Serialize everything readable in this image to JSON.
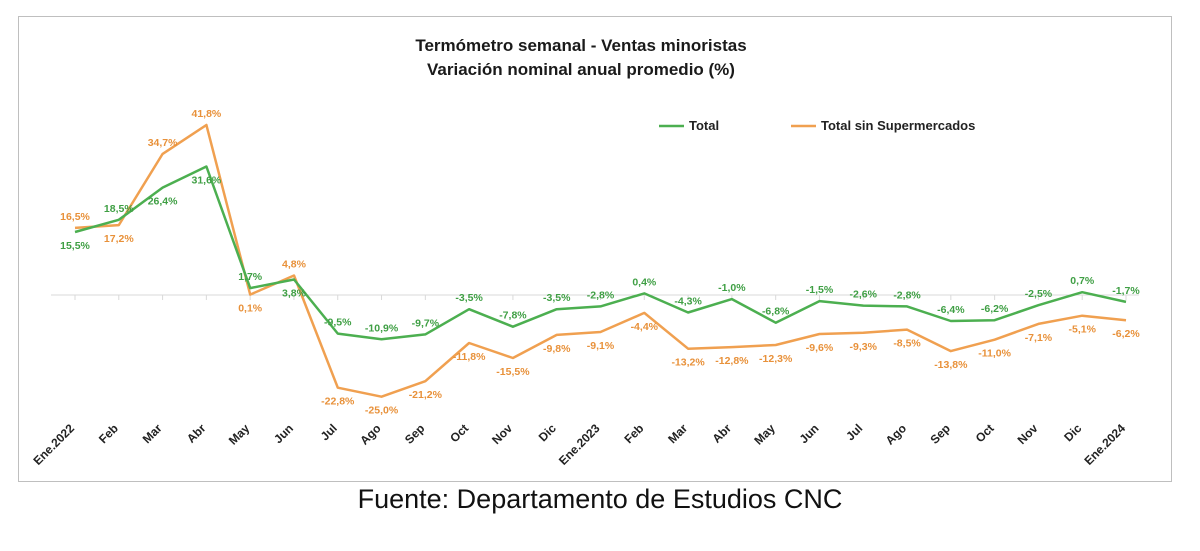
{
  "chart_data": {
    "type": "line",
    "title": "Termómetro semanal - Ventas minoristas",
    "subtitle": "Variación nominal anual promedio (%)",
    "categories": [
      "Ene.2022",
      "Feb",
      "Mar",
      "Abr",
      "May",
      "Jun",
      "Jul",
      "Ago",
      "Sep",
      "Oct",
      "Nov",
      "Dic",
      "Ene.2023",
      "Feb",
      "Mar",
      "Abr",
      "May",
      "Jun",
      "Jul",
      "Ago",
      "Sep",
      "Oct",
      "Nov",
      "Dic",
      "Ene.2024"
    ],
    "series": [
      {
        "name": "Total",
        "color": "#4caf50",
        "values": [
          15.5,
          18.5,
          26.4,
          31.6,
          1.7,
          3.8,
          -9.5,
          -10.9,
          -9.7,
          -3.5,
          -7.8,
          -3.5,
          -2.8,
          0.4,
          -4.3,
          -1.0,
          -6.8,
          -1.5,
          -2.6,
          -2.8,
          -6.4,
          -6.2,
          -2.5,
          0.7,
          -1.7
        ],
        "labels": [
          "15,5%",
          "18,5%",
          "26,4%",
          "31,6%",
          "1,7%",
          "3,8%",
          "-9,5%",
          "-10,9%",
          "-9,7%",
          "-3,5%",
          "-7,8%",
          "-3,5%",
          "-2,8%",
          "0,4%",
          "-4,3%",
          "-1,0%",
          "-6,8%",
          "-1,5%",
          "-2,6%",
          "-2,8%",
          "-6,4%",
          "-6,2%",
          "-2,5%",
          "0,7%",
          "-1,7%"
        ]
      },
      {
        "name": "Total sin Supermercados",
        "color": "#f0a050",
        "values": [
          16.5,
          17.2,
          34.7,
          41.8,
          0.1,
          4.8,
          -22.8,
          -25.0,
          -21.2,
          -11.8,
          -15.5,
          -9.8,
          -9.1,
          -4.4,
          -13.2,
          -12.8,
          -12.3,
          -9.6,
          -9.3,
          -8.5,
          -13.8,
          -11.0,
          -7.1,
          -5.1,
          -6.2
        ],
        "labels": [
          "16,5%",
          "17,2%",
          "34,7%",
          "41,8%",
          "0,1%",
          "4,8%",
          "-22,8%",
          "-25,0%",
          "-21,2%",
          "-11,8%",
          "-15,5%",
          "-9,8%",
          "-9,1%",
          "-4,4%",
          "-13,2%",
          "-12,8%",
          "-12,3%",
          "-9,6%",
          "-9,3%",
          "-8,5%",
          "-13,8%",
          "-11,0%",
          "-7,1%",
          "-5,1%",
          "-6,2%"
        ]
      }
    ],
    "ylim": [
      -30,
      45
    ],
    "grid": false,
    "legend": "top-right"
  },
  "source": "Fuente: Departamento de Estudios CNC"
}
